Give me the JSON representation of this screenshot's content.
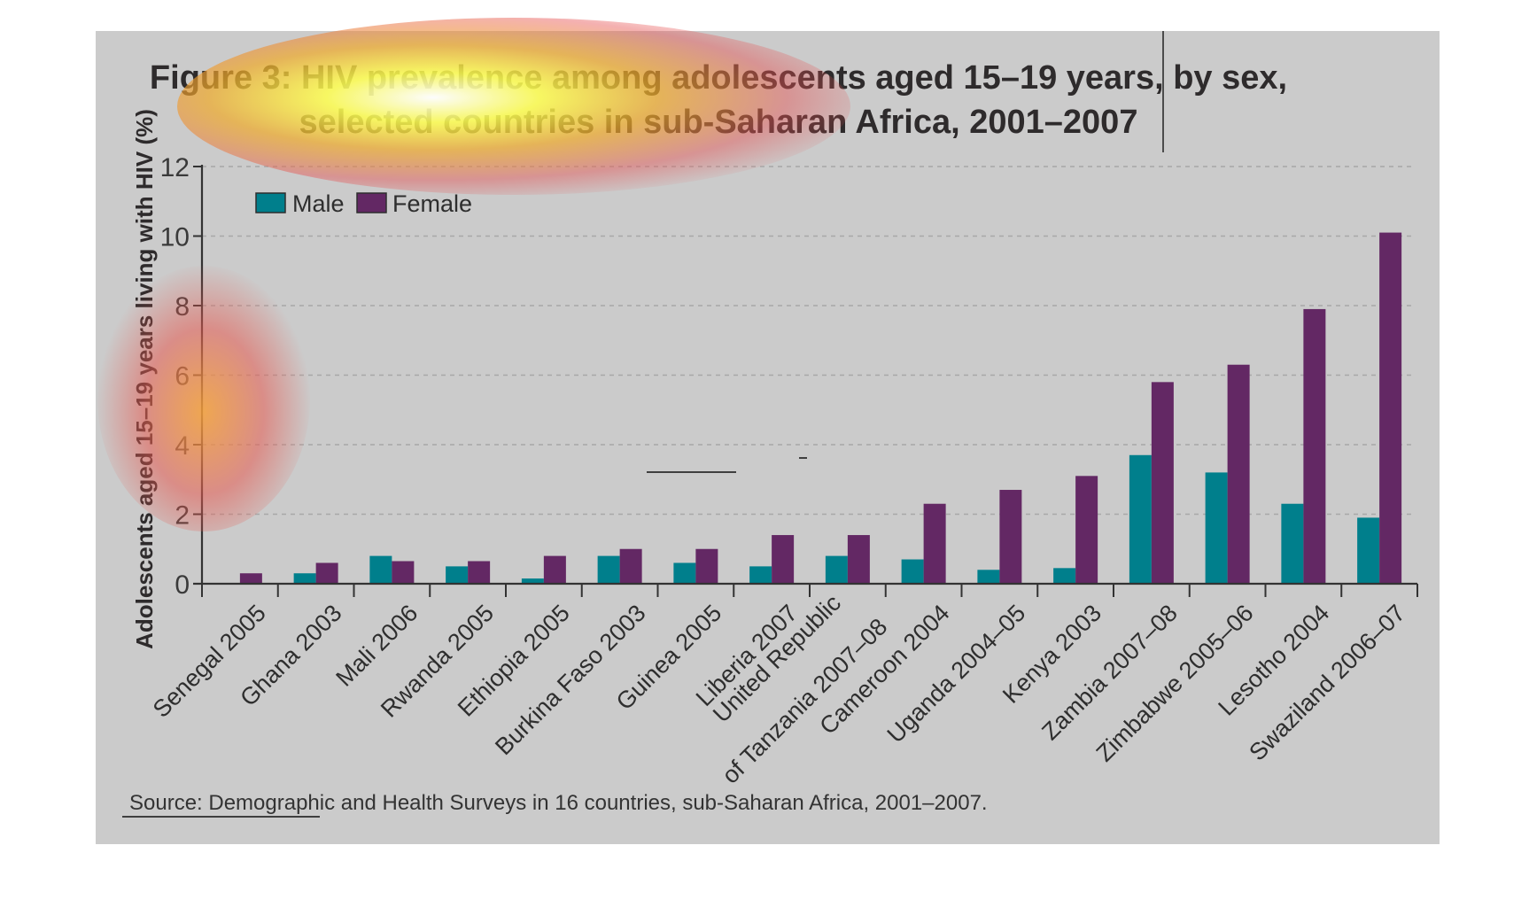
{
  "colors": {
    "male": "#007f8c",
    "female": "#632864",
    "panel": "#cbcbcb",
    "axis": "#333333",
    "grid": "#a8a8a8"
  },
  "chart_data": {
    "type": "bar",
    "title_line1": "Figure 3: HIV prevalence among adolescents aged 15–19 years, by sex,",
    "title_line2": "selected countries in sub-Saharan Africa, 2001–2007",
    "ylabel": "Adolescents aged 15–19 years living with HIV (%)",
    "xlabel": "",
    "ylim": [
      0,
      12
    ],
    "yticks": [
      "0",
      "2",
      "4",
      "6",
      "8",
      "10",
      "12"
    ],
    "grid": true,
    "legend_position": "top-left",
    "categories": [
      [
        "Senegal 2005"
      ],
      [
        "Ghana 2003"
      ],
      [
        "Mali 2006"
      ],
      [
        "Rwanda 2005"
      ],
      [
        "Ethiopia 2005"
      ],
      [
        "Burkina Faso 2003"
      ],
      [
        "Guinea 2005"
      ],
      [
        "Liberia 2007"
      ],
      [
        "United Republic",
        "of Tanzania 2007–08"
      ],
      [
        "Cameroon 2004"
      ],
      [
        "Uganda 2004–05"
      ],
      [
        "Kenya 2003"
      ],
      [
        "Zambia 2007–08"
      ],
      [
        "Zimbabwe 2005–06"
      ],
      [
        "Lesotho 2004"
      ],
      [
        "Swaziland 2006–07"
      ]
    ],
    "series": [
      {
        "name": "Male",
        "values": [
          0.0,
          0.3,
          0.8,
          0.5,
          0.15,
          0.8,
          0.6,
          0.5,
          0.8,
          0.7,
          0.4,
          0.45,
          3.7,
          3.2,
          2.3,
          1.9
        ]
      },
      {
        "name": "Female",
        "values": [
          0.3,
          0.6,
          0.65,
          0.65,
          0.8,
          1.0,
          1.0,
          1.4,
          1.4,
          2.3,
          2.7,
          3.1,
          5.8,
          6.3,
          7.9,
          10.1
        ]
      }
    ],
    "source": "Source: Demographic and Health Surveys in 16 countries, sub-Saharan Africa, 2001–2007."
  }
}
